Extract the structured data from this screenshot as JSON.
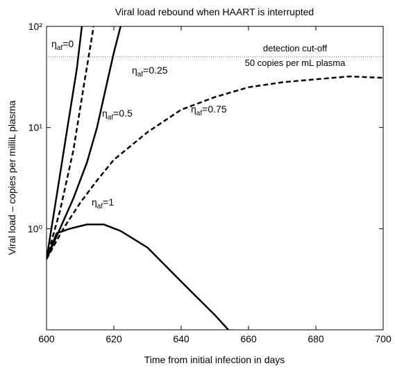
{
  "chart_data": {
    "type": "line",
    "title": "Viral load rebound when HAART is interrupted",
    "xlabel": "Time from initial infection in days",
    "ylabel": "Viral load – copies per milliL plasma",
    "xlim": [
      600,
      700
    ],
    "xticks": [
      600,
      620,
      640,
      660,
      680,
      700
    ],
    "ylim": [
      0.1,
      100
    ],
    "yscale": "log",
    "yticks": [
      {
        "value": 1,
        "label": "10⁰"
      },
      {
        "value": 10,
        "label": "10¹"
      },
      {
        "value": 100,
        "label": "10²"
      }
    ],
    "cutoff": {
      "value": 50,
      "label": "detection cut-off",
      "sublabel": "50 copies per mL plasma"
    },
    "series": [
      {
        "label": {
          "sym": "η",
          "sub": "af",
          "val": "=0"
        },
        "color": "#000000",
        "style": "solid",
        "x": [
          600,
          603,
          606,
          609,
          610.5
        ],
        "values": [
          0.5,
          2.1,
          9,
          38,
          100
        ]
      },
      {
        "label": {
          "sym": "η",
          "sub": "af",
          "val": "=0.25"
        },
        "color": "#000000",
        "style": "dashed",
        "x": [
          600,
          604,
          608,
          611,
          614
        ],
        "values": [
          0.5,
          1.5,
          6,
          25,
          100
        ]
      },
      {
        "label": {
          "sym": "η",
          "sub": "af",
          "val": "=0.5"
        },
        "color": "#000000",
        "style": "solid",
        "x": [
          600,
          604,
          608,
          612,
          615,
          618,
          620,
          622
        ],
        "values": [
          0.5,
          1.0,
          2.0,
          4.5,
          10,
          28,
          55,
          100
        ]
      },
      {
        "label": {
          "sym": "η",
          "sub": "af",
          "val": "=0.75"
        },
        "color": "#000000",
        "style": "dashed",
        "x": [
          600,
          605,
          610,
          615,
          620,
          630,
          640,
          650,
          660,
          670,
          680,
          690,
          700
        ],
        "values": [
          0.5,
          1.0,
          1.8,
          3.0,
          4.8,
          9,
          15,
          20,
          25,
          28,
          30,
          32,
          31
        ]
      },
      {
        "label": {
          "sym": "η",
          "sub": "af",
          "val": "=1"
        },
        "color": "#000000",
        "style": "solid",
        "x": [
          600,
          603,
          607,
          612,
          617,
          622,
          630,
          640,
          650,
          654
        ],
        "values": [
          0.5,
          0.9,
          1.0,
          1.1,
          1.1,
          0.95,
          0.65,
          0.3,
          0.14,
          0.1
        ]
      }
    ]
  }
}
